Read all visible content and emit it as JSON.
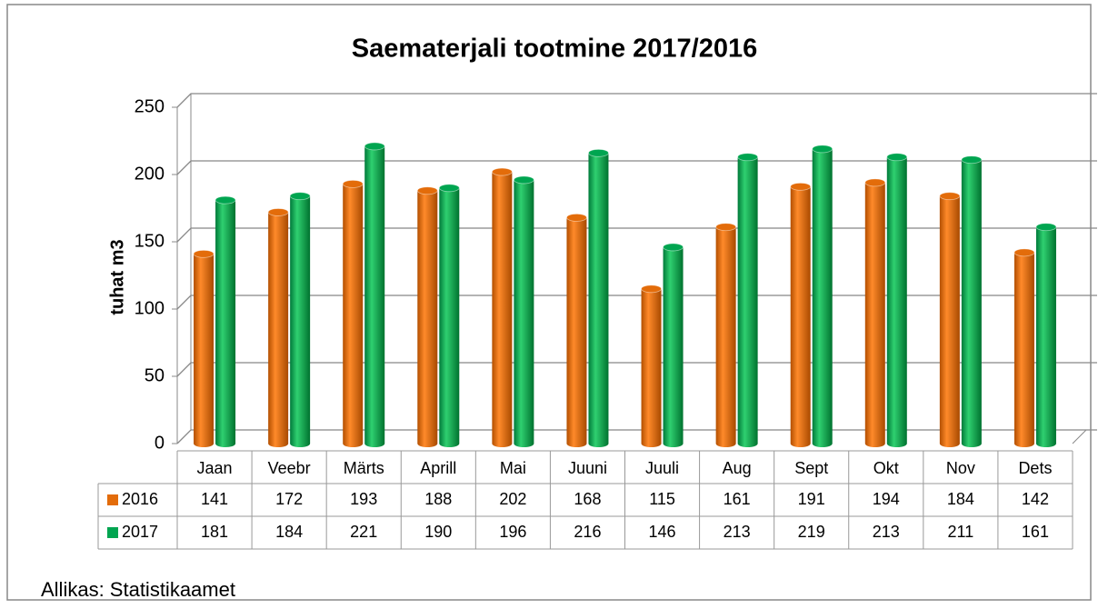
{
  "chart_data": {
    "type": "bar",
    "title": "Saematerjali tootmine 2017/2016",
    "y_label": "tuhat m3",
    "categories": [
      "Jaan",
      "Veebr",
      "Märts",
      "Aprill",
      "Mai",
      "Juuni",
      "Juuli",
      "Aug",
      "Sept",
      "Okt",
      "Nov",
      "Dets"
    ],
    "series": [
      {
        "name": "2016",
        "color": "#e36c0a",
        "values": [
          141,
          172,
          193,
          188,
          202,
          168,
          115,
          161,
          191,
          194,
          184,
          142
        ]
      },
      {
        "name": "2017",
        "color": "#00a550",
        "values": [
          181,
          184,
          221,
          190,
          196,
          216,
          146,
          213,
          219,
          213,
          211,
          161
        ]
      }
    ],
    "ylim": [
      0,
      250
    ],
    "yticks": [
      0,
      50,
      100,
      150,
      200,
      250
    ],
    "grid": true
  },
  "source": "Allikas: Statistikaamet"
}
